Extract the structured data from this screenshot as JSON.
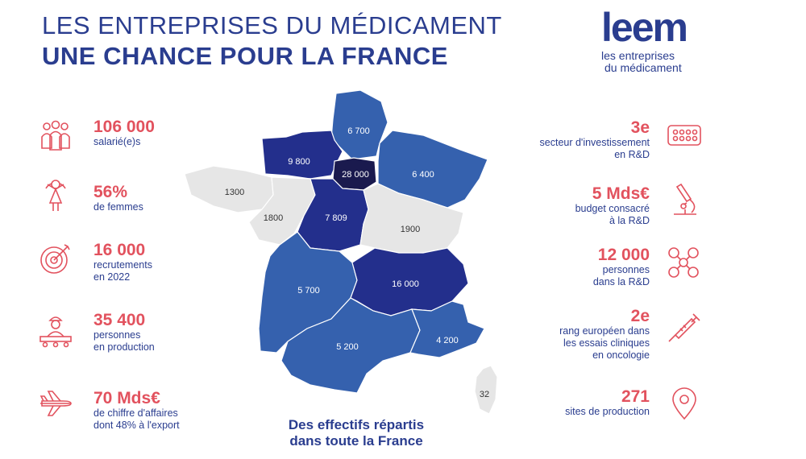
{
  "header": {
    "title_line1": "LES ENTREPRISES DU MÉDICAMENT",
    "title_line2": "UNE CHANCE POUR LA FRANCE"
  },
  "logo": {
    "main": "leem",
    "sub_line1": "les entreprises",
    "sub_line2": "du médicament"
  },
  "left_stats": [
    {
      "icon": "people-group-icon",
      "number": "106 000",
      "text": [
        "salarié(e)s"
      ]
    },
    {
      "icon": "woman-icon",
      "number": "56%",
      "text": [
        "de femmes"
      ]
    },
    {
      "icon": "target-icon",
      "number": "16 000",
      "text": [
        "recrutements",
        "en 2022"
      ]
    },
    {
      "icon": "production-worker-icon",
      "number": "35 400",
      "text": [
        "personnes",
        "en production"
      ]
    },
    {
      "icon": "airplane-icon",
      "number": "70 Mds€",
      "text": [
        "de chiffre d'affaires",
        "dont 48% à l'export"
      ]
    }
  ],
  "right_stats": [
    {
      "icon": "pill-blister-icon",
      "number": "3e",
      "text": [
        "secteur d'investissement",
        "en R&D"
      ]
    },
    {
      "icon": "microscope-icon",
      "number": "5 Mds€",
      "text": [
        "budget consacré",
        "à la R&D"
      ]
    },
    {
      "icon": "network-people-icon",
      "number": "12 000",
      "text": [
        "personnes",
        "dans la R&D"
      ]
    },
    {
      "icon": "syringe-icon",
      "number": "2e",
      "text": [
        "rang européen dans",
        "les essais cliniques",
        "en oncologie"
      ]
    },
    {
      "icon": "location-pin-icon",
      "number": "271",
      "text": [
        "sites de production"
      ]
    }
  ],
  "map": {
    "regions": [
      {
        "id": "hauts-de-france",
        "value": "6 700"
      },
      {
        "id": "normandie",
        "value": "9 800"
      },
      {
        "id": "ile-de-france",
        "value": "28 000"
      },
      {
        "id": "grand-est",
        "value": "6 400"
      },
      {
        "id": "bretagne",
        "value": "1300"
      },
      {
        "id": "pays-de-la-loire",
        "value": "1800"
      },
      {
        "id": "centre-val-de-loire",
        "value": "7 809"
      },
      {
        "id": "bourgogne-franche-comte",
        "value": "1900"
      },
      {
        "id": "nouvelle-aquitaine",
        "value": "5 700"
      },
      {
        "id": "auvergne-rhone-alpes",
        "value": "16 000"
      },
      {
        "id": "occitanie",
        "value": "5 200"
      },
      {
        "id": "provence-alpes-cote-dazur",
        "value": "4 200"
      },
      {
        "id": "corse",
        "value": "32"
      }
    ],
    "colors": {
      "darkest": "#1a1a4e",
      "dark": "#232f8c",
      "medium": "#3561ae",
      "light": "#e6e6e6",
      "label_light": "#333333"
    },
    "caption_line1": "Des effectifs répartis",
    "caption_line2": "dans toute la France"
  },
  "colors": {
    "accent": "#e2525e",
    "brand": "#2a3d8f"
  }
}
